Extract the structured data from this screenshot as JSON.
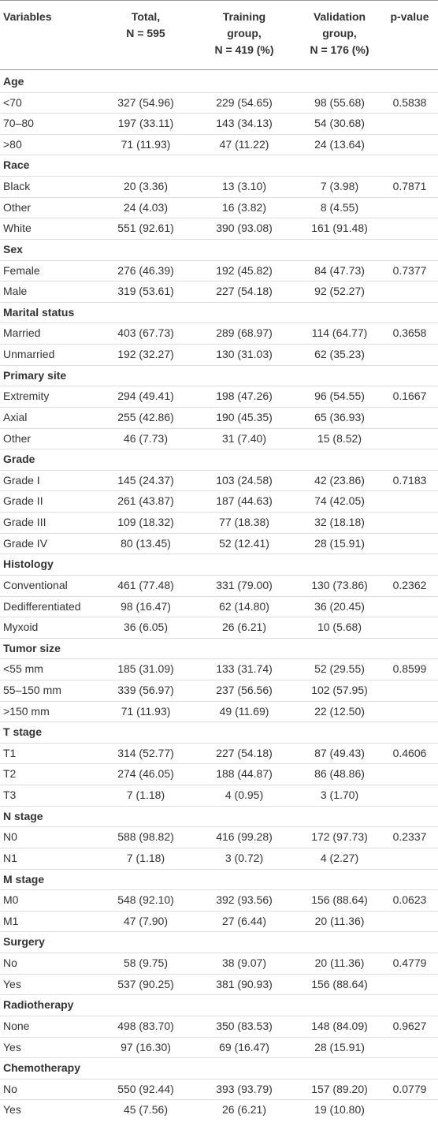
{
  "table": {
    "header": [
      [
        "Variables"
      ],
      [
        "Total,",
        "N = 595"
      ],
      [
        "Training",
        "group,",
        "N = 419 (%)"
      ],
      [
        "Validation",
        "group,",
        "N = 176 (%)"
      ],
      [
        "p-value"
      ]
    ],
    "groups": [
      {
        "label": "Age",
        "rows": [
          [
            "<70",
            "327 (54.96)",
            "229 (54.65)",
            "98 (55.68)",
            "0.5838"
          ],
          [
            "70–80",
            "197 (33.11)",
            "143 (34.13)",
            "54 (30.68)"
          ],
          [
            ">80",
            "71 (11.93)",
            "47 (11.22)",
            "24 (13.64)"
          ]
        ]
      },
      {
        "label": "Race",
        "rows": [
          [
            "Black",
            "20 (3.36)",
            "13 (3.10)",
            "7 (3.98)",
            "0.7871"
          ],
          [
            "Other",
            "24 (4.03)",
            "16 (3.82)",
            "8 (4.55)"
          ],
          [
            "White",
            "551 (92.61)",
            "390 (93.08)",
            "161 (91.48)"
          ]
        ]
      },
      {
        "label": "Sex",
        "rows": [
          [
            "Female",
            "276 (46.39)",
            "192 (45.82)",
            "84 (47.73)",
            "0.7377"
          ],
          [
            "Male",
            "319 (53.61)",
            "227 (54.18)",
            "92 (52.27)"
          ]
        ]
      },
      {
        "label": "Marital status",
        "rows": [
          [
            "Married",
            "403 (67.73)",
            "289 (68.97)",
            "114 (64.77)",
            "0.3658"
          ],
          [
            "Unmarried",
            "192 (32.27)",
            "130 (31.03)",
            "62 (35.23)"
          ]
        ]
      },
      {
        "label": "Primary site",
        "rows": [
          [
            "Extremity",
            "294 (49.41)",
            "198 (47.26)",
            "96 (54.55)",
            "0.1667"
          ],
          [
            "Axial",
            "255 (42.86)",
            "190 (45.35)",
            "65 (36.93)"
          ],
          [
            "Other",
            "46 (7.73)",
            "31 (7.40)",
            "15 (8.52)"
          ]
        ]
      },
      {
        "label": "Grade",
        "rows": [
          [
            "Grade I",
            "145 (24.37)",
            "103 (24.58)",
            "42 (23.86)",
            "0.7183"
          ],
          [
            "Grade II",
            "261 (43.87)",
            "187 (44.63)",
            "74 (42.05)"
          ],
          [
            "Grade III",
            "109 (18.32)",
            "77 (18.38)",
            "32 (18.18)"
          ],
          [
            "Grade IV",
            "80 (13.45)",
            "52 (12.41)",
            "28 (15.91)"
          ]
        ]
      },
      {
        "label": "Histology",
        "rows": [
          [
            "Conventional",
            "461 (77.48)",
            "331 (79.00)",
            "130 (73.86)",
            "0.2362"
          ],
          [
            "Dedifferentiated",
            "98 (16.47)",
            "62 (14.80)",
            "36 (20.45)"
          ],
          [
            "Myxoid",
            "36 (6.05)",
            "26 (6.21)",
            "10 (5.68)"
          ]
        ]
      },
      {
        "label": "Tumor size",
        "rows": [
          [
            "<55 mm",
            "185 (31.09)",
            "133 (31.74)",
            "52 (29.55)",
            "0.8599"
          ],
          [
            "55–150 mm",
            "339 (56.97)",
            "237 (56.56)",
            "102 (57.95)"
          ],
          [
            ">150 mm",
            "71 (11.93)",
            "49 (11.69)",
            "22 (12.50)"
          ]
        ]
      },
      {
        "label": "T stage",
        "rows": [
          [
            "T1",
            "314 (52.77)",
            "227 (54.18)",
            "87 (49.43)",
            "0.4606"
          ],
          [
            "T2",
            "274 (46.05)",
            "188 (44.87)",
            "86 (48.86)"
          ],
          [
            "T3",
            "7 (1.18)",
            "4 (0.95)",
            "3 (1.70)"
          ]
        ]
      },
      {
        "label": "N stage",
        "rows": [
          [
            "N0",
            "588 (98.82)",
            "416 (99.28)",
            "172 (97.73)",
            "0.2337"
          ],
          [
            "N1",
            "7 (1.18)",
            "3 (0.72)",
            "4 (2.27)"
          ]
        ]
      },
      {
        "label": "M stage",
        "rows": [
          [
            "M0",
            "548 (92.10)",
            "392 (93.56)",
            "156 (88.64)",
            "0.0623"
          ],
          [
            "M1",
            "47 (7.90)",
            "27 (6.44)",
            "20 (11.36)"
          ]
        ]
      },
      {
        "label": "Surgery",
        "rows": [
          [
            "No",
            "58 (9.75)",
            "38 (9.07)",
            "20 (11.36)",
            "0.4779"
          ],
          [
            "Yes",
            "537 (90.25)",
            "381 (90.93)",
            "156 (88.64)"
          ]
        ]
      },
      {
        "label": "Radiotherapy",
        "rows": [
          [
            "None",
            "498 (83.70)",
            "350 (83.53)",
            "148 (84.09)",
            "0.9627"
          ],
          [
            "Yes",
            "97 (16.30)",
            "69 (16.47)",
            "28 (15.91)"
          ]
        ]
      },
      {
        "label": "Chemotherapy",
        "rows": [
          [
            "No",
            "550 (92.44)",
            "393 (93.79)",
            "157 (89.20)",
            "0.0779"
          ],
          [
            "Yes",
            "45 (7.56)",
            "26 (6.21)",
            "19 (10.80)"
          ]
        ]
      }
    ]
  }
}
